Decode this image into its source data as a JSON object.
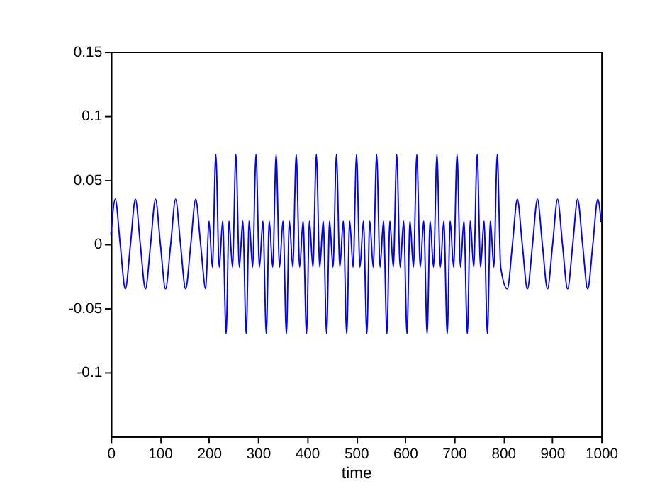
{
  "chart_data": {
    "type": "line",
    "xlabel": "time",
    "xlim": [
      0,
      1000
    ],
    "ylim": [
      -0.15,
      0.15
    ],
    "xticks": [
      0,
      100,
      200,
      300,
      400,
      500,
      600,
      700,
      800,
      900,
      1000
    ],
    "yticks": [
      -0.1,
      -0.05,
      0,
      0.05,
      0.1,
      0.15
    ],
    "grid": false,
    "series": [
      {
        "color": "#0000ff",
        "x": [
          0,
          9,
          19,
          29.5,
          40,
          50,
          60,
          70.5,
          81,
          91,
          101,
          111.5,
          122,
          132,
          142,
          152.5,
          163,
          173,
          183,
          193.5,
          200,
          207,
          214,
          221,
          228,
          235,
          241,
          248,
          255,
          262,
          269,
          276,
          282,
          289,
          296,
          303,
          310,
          317,
          323,
          330,
          337,
          344,
          351,
          358,
          364,
          371,
          378,
          385,
          392,
          399,
          405,
          412,
          419,
          426,
          433,
          440,
          446,
          453,
          460,
          467,
          474,
          481,
          487,
          494,
          501,
          508,
          515,
          522,
          528,
          535,
          542,
          549,
          556,
          563,
          569,
          576,
          583,
          590,
          597,
          604,
          610,
          617,
          624,
          631,
          638,
          645,
          651,
          658,
          665,
          672,
          679,
          686,
          692,
          699,
          706,
          713,
          720,
          727,
          733,
          740,
          747,
          754,
          761,
          768,
          774,
          781,
          788,
          795,
          808.5,
          819,
          829,
          839,
          849.5,
          860,
          870,
          880,
          890.5,
          901,
          911,
          921,
          931.5,
          942,
          952,
          962,
          972.5,
          983,
          993,
          1000
        ],
        "values": [
          0.007,
          0.035,
          0,
          -0.035,
          0,
          0.035,
          0,
          -0.035,
          0,
          0.035,
          0,
          -0.035,
          0,
          0.035,
          0,
          -0.035,
          0,
          0.035,
          0,
          -0.035,
          0.018,
          -0.018,
          0.07,
          -0.018,
          0.018,
          -0.07,
          0.018,
          -0.018,
          0.07,
          -0.018,
          0.018,
          -0.07,
          0.018,
          -0.018,
          0.07,
          -0.018,
          0.018,
          -0.07,
          0.018,
          -0.018,
          0.07,
          -0.018,
          0.018,
          -0.07,
          0.018,
          -0.018,
          0.07,
          -0.018,
          0.018,
          -0.07,
          0.018,
          -0.018,
          0.07,
          -0.018,
          0.018,
          -0.07,
          0.018,
          -0.018,
          0.07,
          -0.018,
          0.018,
          -0.07,
          0.018,
          -0.018,
          0.07,
          -0.018,
          0.018,
          -0.07,
          0.018,
          -0.018,
          0.07,
          -0.018,
          0.018,
          -0.07,
          0.018,
          -0.018,
          0.07,
          -0.018,
          0.018,
          -0.07,
          0.018,
          -0.018,
          0.07,
          -0.018,
          0.018,
          -0.07,
          0.018,
          -0.018,
          0.07,
          -0.018,
          0.018,
          -0.07,
          0.018,
          -0.018,
          0.07,
          -0.018,
          0.018,
          -0.07,
          0.018,
          -0.018,
          0.07,
          -0.018,
          0.018,
          -0.07,
          0.018,
          -0.018,
          0.07,
          -0.018,
          -0.035,
          0,
          0.035,
          0,
          -0.035,
          0,
          0.035,
          0,
          -0.035,
          0,
          0.035,
          0,
          -0.035,
          0,
          0.035,
          0,
          -0.035,
          0,
          0.035,
          0.017
        ]
      }
    ]
  }
}
